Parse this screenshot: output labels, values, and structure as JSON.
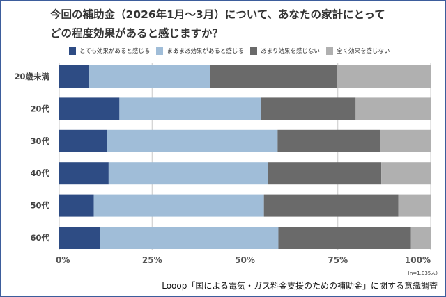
{
  "chart_data": {
    "type": "bar",
    "orientation": "horizontal-stacked-100",
    "title": "今回の補助金（2026年1月～3月）について、あなたの家計にとってどの程度効果があると感じますか？",
    "title_lines": [
      "今回の補助金（2026年1月～3月）について、あなたの家計にとって",
      "どの程度効果があると感じますか？"
    ],
    "categories": [
      "20歳未満",
      "20代",
      "30代",
      "40代",
      "50代",
      "60代"
    ],
    "series": [
      {
        "name": "とても効果があると感じる",
        "color": "#2e4c84",
        "values": [
          8.1,
          16.2,
          12.9,
          13.3,
          9.3,
          10.9
        ]
      },
      {
        "name": "まあまあ効果があると感じる",
        "color": "#a0bdd8",
        "values": [
          32.6,
          38.2,
          45.9,
          42.9,
          45.8,
          48.1
        ]
      },
      {
        "name": "あまり効果を感じない",
        "color": "#6a6a6a",
        "values": [
          34.0,
          25.4,
          27.6,
          30.5,
          36.2,
          35.7
        ]
      },
      {
        "name": "全く効果を感じない",
        "color": "#b0b0b0",
        "values": [
          25.3,
          20.2,
          13.6,
          13.3,
          8.7,
          5.3
        ]
      }
    ],
    "xticks": [
      "0%",
      "25%",
      "50%",
      "75%",
      "100%"
    ],
    "xlim": [
      0,
      100
    ],
    "grid": true,
    "legend": "top",
    "note": "(n=1,035人)",
    "source": "Looop「国による電気・ガス料金支援のための補助金」に関する意識調査"
  }
}
